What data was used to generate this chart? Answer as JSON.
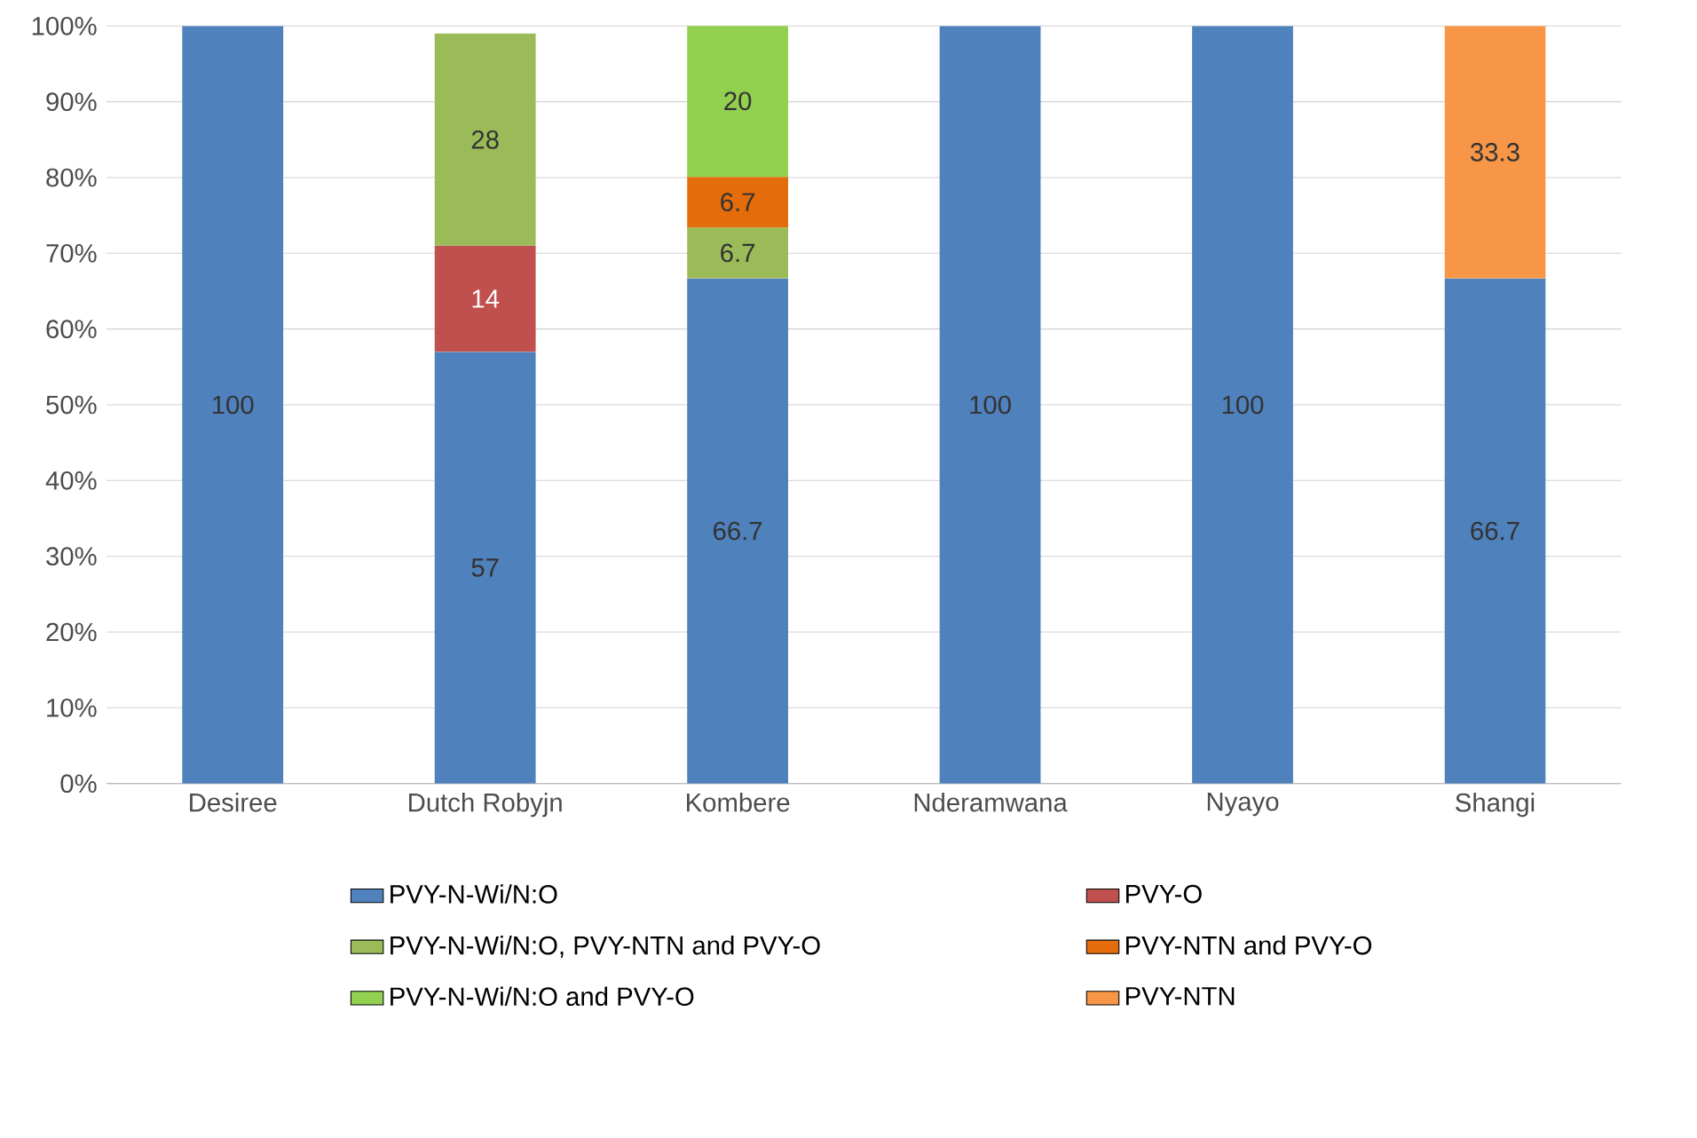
{
  "chart_data": {
    "type": "bar",
    "stacked": true,
    "categories": [
      "Desiree",
      "Dutch Robyjn",
      "Kombere",
      "Nderamwana",
      "Nyayo",
      "Shangi"
    ],
    "series": [
      {
        "name": "PVY-N-Wi/N:O",
        "color": "#4f81bd",
        "values": [
          100,
          57,
          66.7,
          100,
          100,
          66.7
        ]
      },
      {
        "name": "PVY-O",
        "color": "#c0504d",
        "values": [
          null,
          14,
          null,
          null,
          null,
          null
        ]
      },
      {
        "name": "PVY-N-Wi/N:O, PVY-NTN and PVY-O",
        "color": "#9bbb59",
        "values": [
          null,
          28,
          6.7,
          null,
          null,
          null
        ]
      },
      {
        "name": "PVY-NTN and PVY-O",
        "color": "#e46c0a",
        "values": [
          null,
          null,
          6.7,
          null,
          null,
          null
        ]
      },
      {
        "name": "PVY-N-Wi/N:O and PVY-O",
        "color": "#92d050",
        "values": [
          null,
          null,
          20,
          null,
          null,
          null
        ]
      },
      {
        "name": "PVY-NTN",
        "color": "#f79646",
        "values": [
          null,
          null,
          null,
          null,
          null,
          33.3
        ]
      }
    ],
    "ylim": [
      0,
      100
    ],
    "yticks": [
      {
        "value": 0,
        "label": "0%"
      },
      {
        "value": 10,
        "label": "10%"
      },
      {
        "value": 20,
        "label": "20%"
      },
      {
        "value": 30,
        "label": "30%"
      },
      {
        "value": 40,
        "label": "40%"
      },
      {
        "value": 50,
        "label": "50%"
      },
      {
        "value": 60,
        "label": "60%"
      },
      {
        "value": 70,
        "label": "70%"
      },
      {
        "value": 80,
        "label": "80%"
      },
      {
        "value": 90,
        "label": "90%"
      },
      {
        "value": 100,
        "label": "100%"
      }
    ],
    "grid": "y",
    "legend": "bottom",
    "data_labels": true
  }
}
